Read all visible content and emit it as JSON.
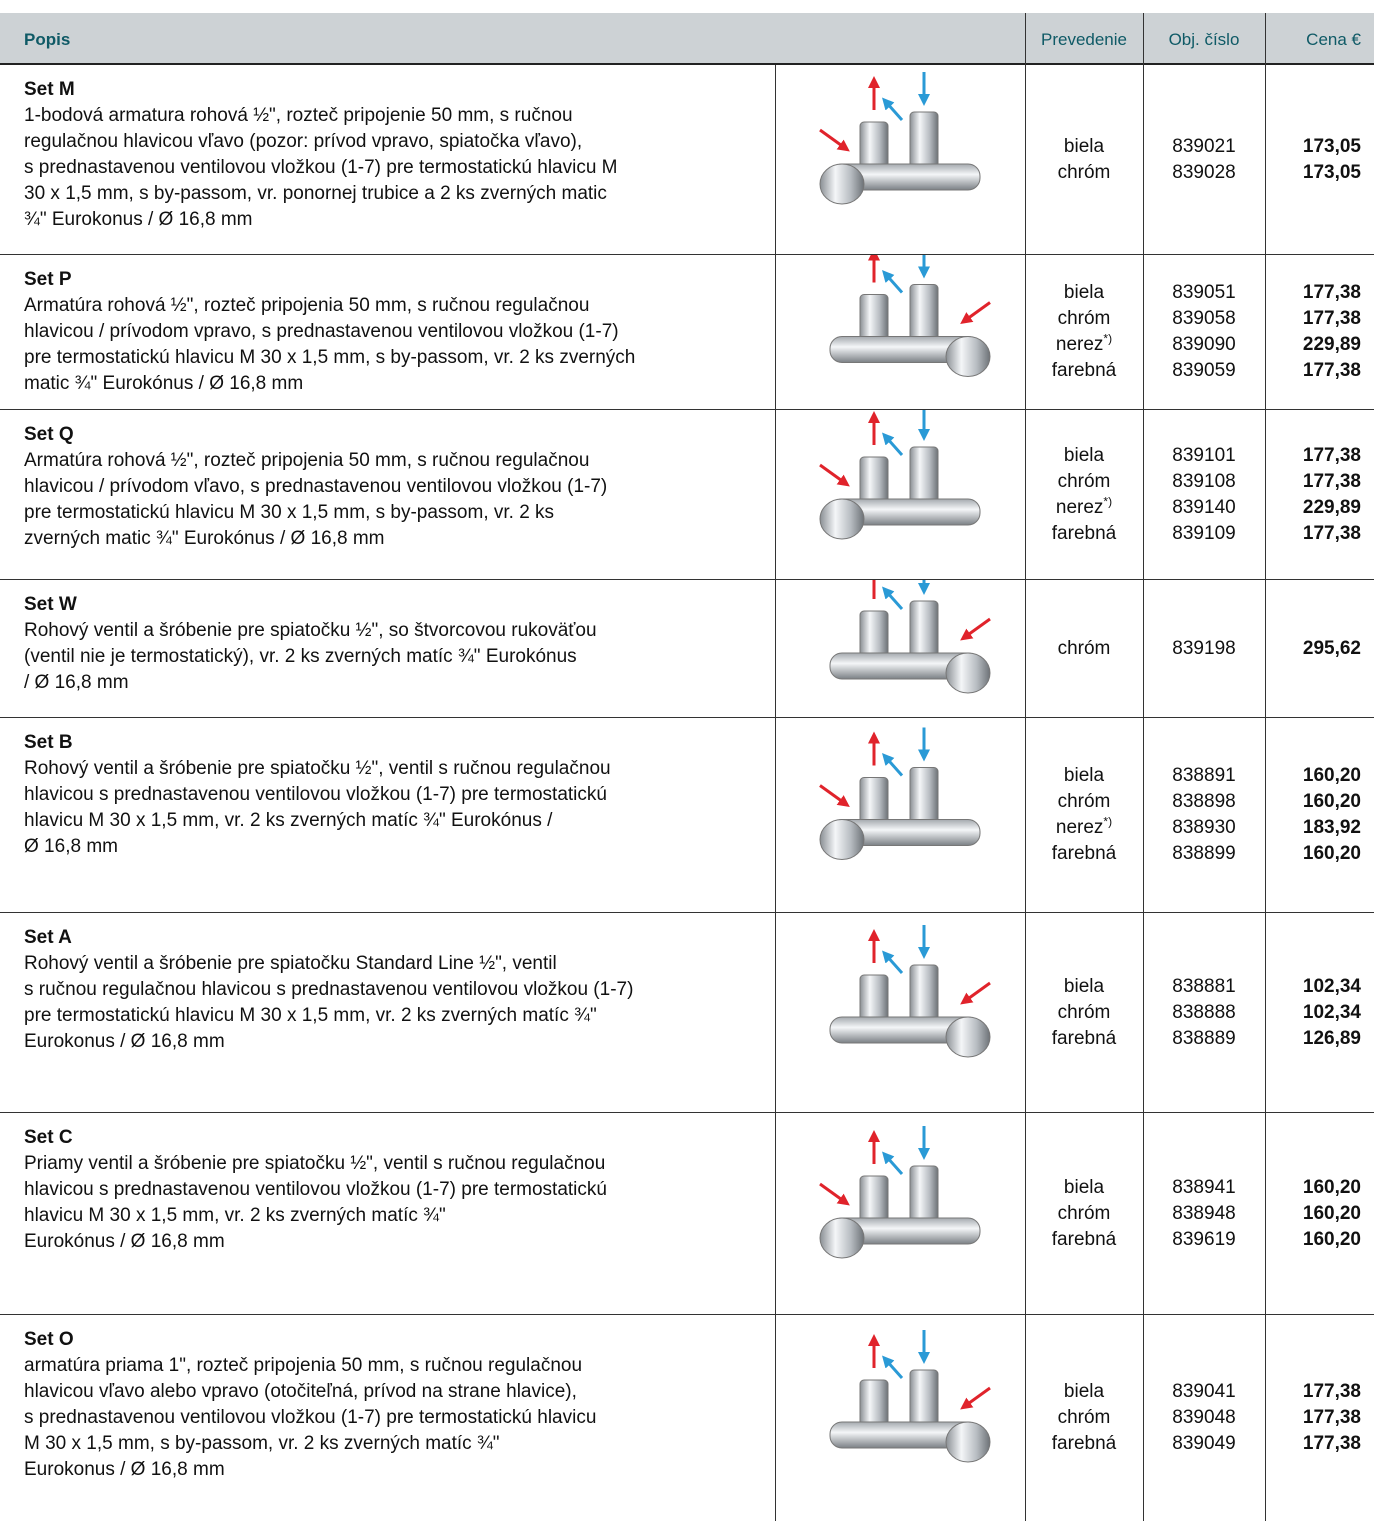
{
  "header": {
    "description": "Popis",
    "finish": "Prevedenie",
    "code": "Obj. číslo",
    "price": "Cena €"
  },
  "rows": [
    {
      "title": "Set M",
      "description": [
        "1-bodová armatura rohová ½\", rozteč pripojenie 50 mm, s ručnou",
        "regulačnou hlavicou vľavo (pozor: prívod vpravo, spiatočka vľavo),",
        "s prednastavenou ventilovou vložkou (1-7) pre termostatickú hlavicu M",
        "30 x 1,5 mm, s by-passom, vr. ponornej trubice a 2 ks zverných matic",
        "¾\" Eurokonus / Ø 16,8 mm"
      ],
      "variants": [
        {
          "finish": "biela",
          "code": "839021",
          "price": "173,05"
        },
        {
          "finish": "chróm",
          "code": "839028",
          "price": "173,05"
        }
      ]
    },
    {
      "title": "Set P",
      "description": [
        "Armatúra rohová ½\", rozteč pripojenia 50 mm, s ručnou regulačnou",
        "hlavicou / prívodom vpravo, s prednastavenou ventilovou vložkou (1-7)",
        "pre termostatickú hlavicu M 30 x 1,5 mm, s by-passom, vr. 2 ks zverných",
        "matic ¾\" Eurokónus / Ø 16,8 mm"
      ],
      "variants": [
        {
          "finish": "biela",
          "code": "839051",
          "price": "177,38"
        },
        {
          "finish": "chróm",
          "code": "839058",
          "price": "177,38"
        },
        {
          "finish": "nerez",
          "note": "*)",
          "code": "839090",
          "price": "229,89"
        },
        {
          "finish": "farebná",
          "code": "839059",
          "price": "177,38"
        }
      ]
    },
    {
      "title": "Set Q",
      "description": [
        "Armatúra rohová ½\", rozteč pripojenia 50 mm, s ručnou regulačnou",
        "hlavicou / prívodom vľavo, s prednastavenou ventilovou vložkou (1-7)",
        "pre termostatickú hlavicu M 30 x 1,5 mm, s by-passom, vr. 2 ks",
        "zverných matic ¾\" Eurokónus / Ø 16,8 mm"
      ],
      "variants": [
        {
          "finish": "biela",
          "code": "839101",
          "price": "177,38"
        },
        {
          "finish": "chróm",
          "code": "839108",
          "price": "177,38"
        },
        {
          "finish": "nerez",
          "note": "*)",
          "code": "839140",
          "price": "229,89"
        },
        {
          "finish": "farebná",
          "code": "839109",
          "price": "177,38"
        }
      ]
    },
    {
      "title": "Set W",
      "description": [
        "Rohový ventil a šróbenie pre spiatočku ½\", so štvorcovou rukoväťou",
        "(ventil nie je termostatický), vr. 2 ks zverných matíc ¾\" Eurokónus",
        "/ Ø 16,8 mm"
      ],
      "variants": [
        {
          "finish": "chróm",
          "code": "839198",
          "price": "295,62"
        }
      ]
    },
    {
      "title": "Set B",
      "description": [
        "Rohový ventil a šróbenie pre spiatočku ½\", ventil s ručnou regulačnou",
        "hlavicou s prednastavenou ventilovou vložkou (1-7) pre termostatickú",
        "hlavicu M 30 x 1,5 mm, vr. 2 ks zverných matíc ¾\" Eurokónus /",
        "Ø 16,8 mm"
      ],
      "variants": [
        {
          "finish": "biela",
          "code": "838891",
          "price": "160,20"
        },
        {
          "finish": "chróm",
          "code": "838898",
          "price": "160,20"
        },
        {
          "finish": "nerez",
          "note": "*)",
          "code": "838930",
          "price": "183,92"
        },
        {
          "finish": "farebná",
          "code": "838899",
          "price": "160,20"
        }
      ]
    },
    {
      "title": "Set A",
      "description": [
        "Rohový ventil a šróbenie pre spiatočku Standard Line ½\", ventil",
        "s ručnou regulačnou hlavicou s prednastavenou ventilovou vložkou (1-7)",
        "pre termostatickú hlavicu M 30 x 1,5 mm, vr. 2 ks zverných matíc ¾\"",
        "Eurokonus / Ø 16,8 mm"
      ],
      "variants": [
        {
          "finish": "biela",
          "code": "838881",
          "price": "102,34"
        },
        {
          "finish": "chróm",
          "code": "838888",
          "price": "102,34"
        },
        {
          "finish": "farebná",
          "code": "838889",
          "price": "126,89"
        }
      ]
    },
    {
      "title": "Set C",
      "description": [
        "Priamy ventil a šróbenie pre spiatočku ½\", ventil s ručnou regulačnou",
        "hlavicou s prednastavenou ventilovou vložkou (1-7) pre termostatickú",
        "hlavicu M 30 x 1,5 mm, vr. 2 ks zverných matíc ¾\"",
        "Eurokónus / Ø 16,8 mm"
      ],
      "variants": [
        {
          "finish": "biela",
          "code": "838941",
          "price": "160,20"
        },
        {
          "finish": "chróm",
          "code": "838948",
          "price": "160,20"
        },
        {
          "finish": "farebná",
          "code": "839619",
          "price": "160,20"
        }
      ]
    },
    {
      "title": "Set O",
      "description": [
        "armatúra priama 1\", rozteč pripojenia 50 mm, s ručnou regulačnou",
        "hlavicou vľavo alebo vpravo (otočiteľná, prívod na strane hlavice),",
        "s prednastavenou ventilovou vložkou (1-7) pre termostatickú hlavicu",
        "M 30 x 1,5 mm, s by-passom, vr. 2 ks zverných matíc ¾\"",
        "Eurokonus / Ø 16,8 mm"
      ],
      "variants": [
        {
          "finish": "biela",
          "code": "839041",
          "price": "177,38"
        },
        {
          "finish": "chróm",
          "code": "839048",
          "price": "177,38"
        },
        {
          "finish": "farebná",
          "code": "839049",
          "price": "177,38"
        }
      ]
    }
  ]
}
